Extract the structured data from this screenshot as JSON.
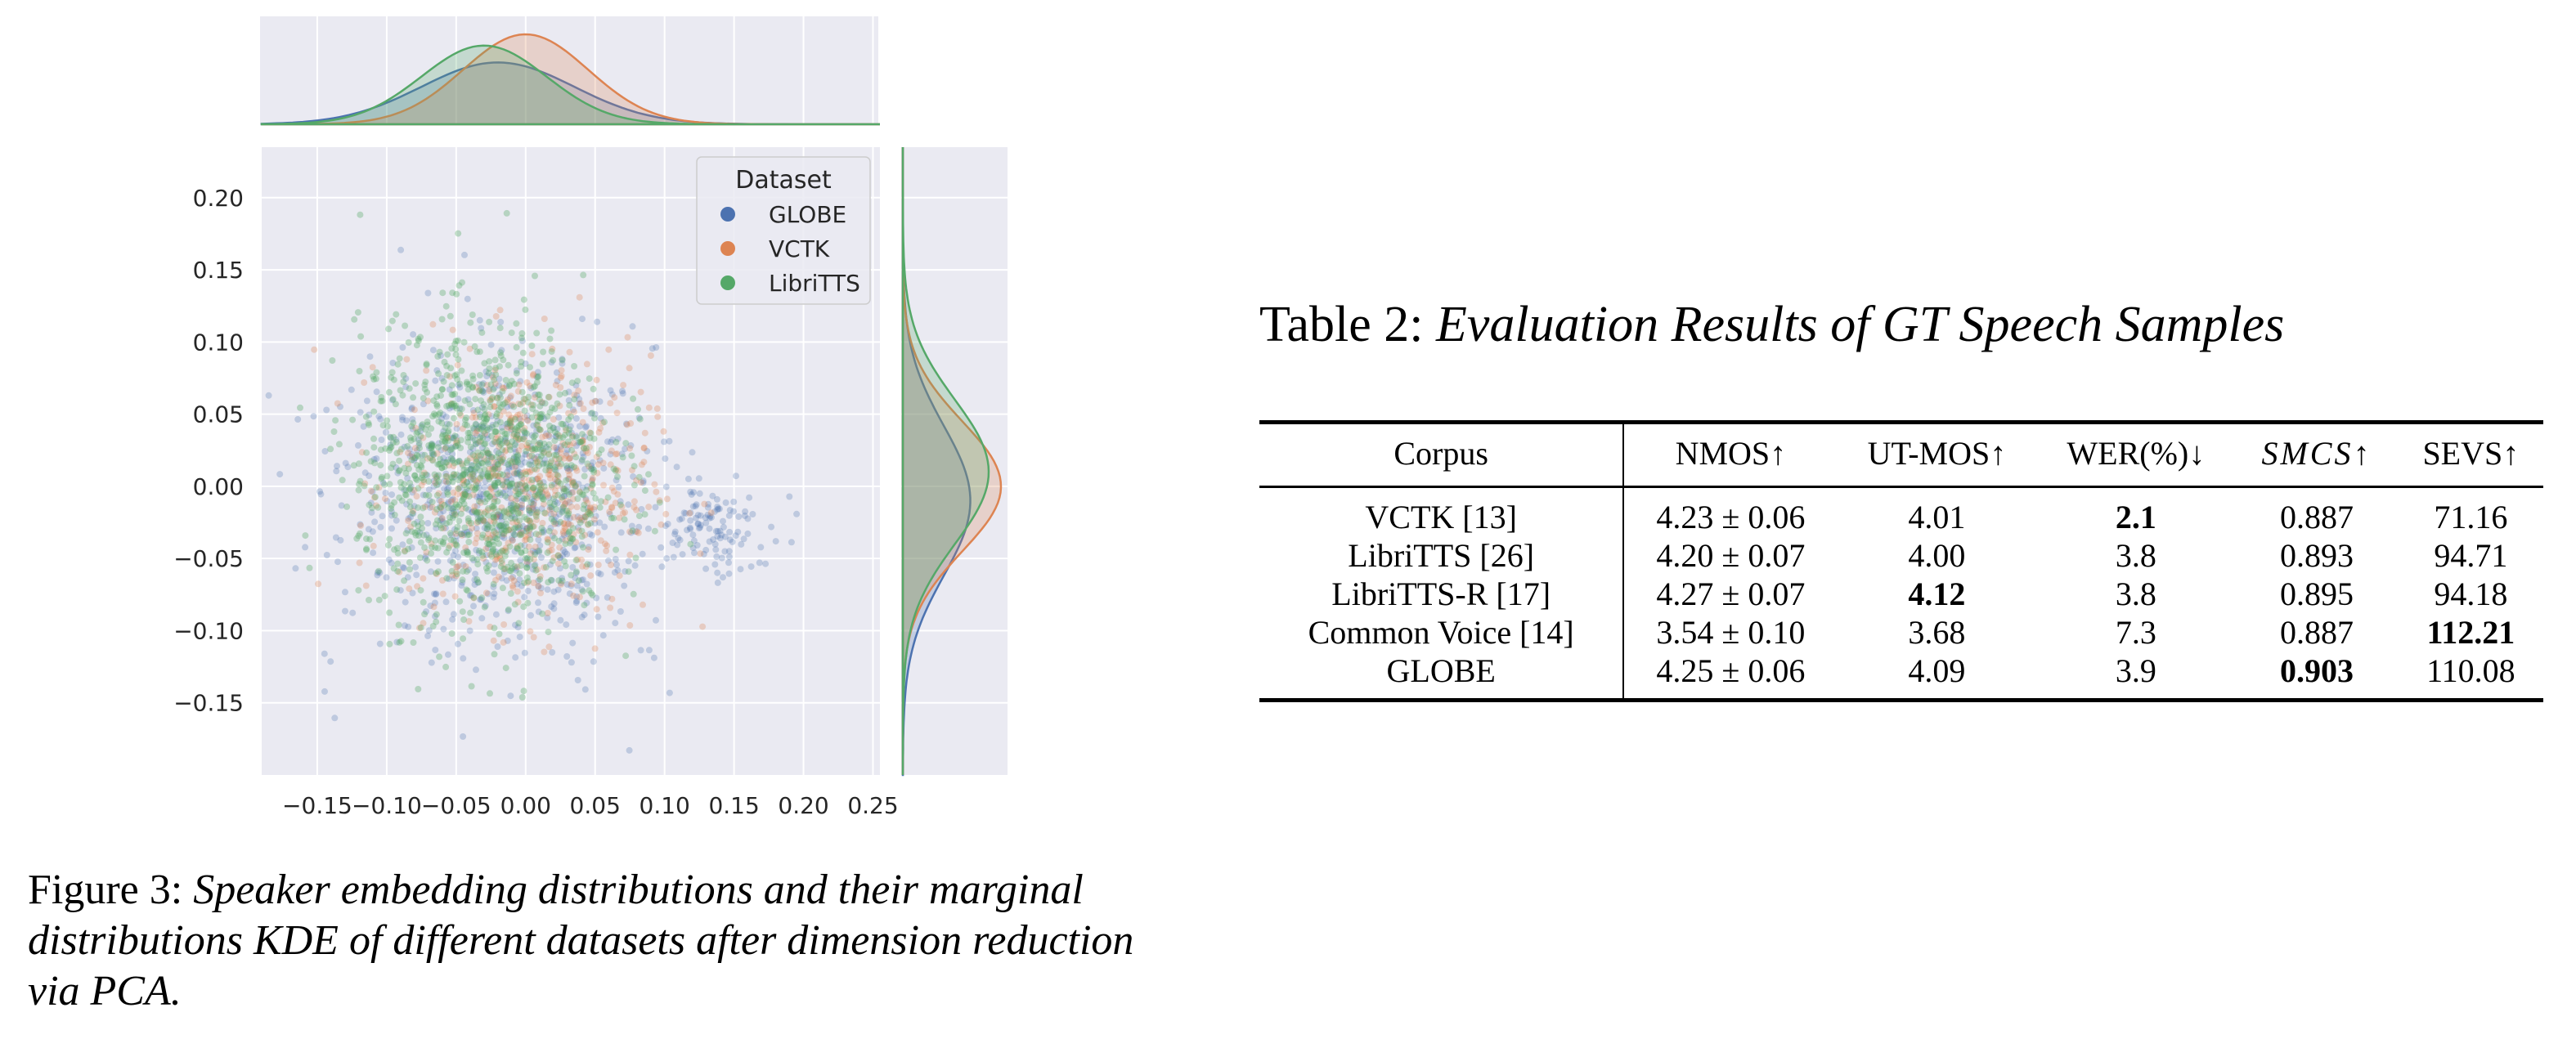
{
  "figure": {
    "caption_label": "Figure 3:",
    "caption_text": "Speaker embedding distributions and their marginal distributions KDE of different datasets after dimension reduction via PCA.",
    "chart_data": {
      "type": "scatter",
      "title": "",
      "xlabel": "",
      "ylabel": "",
      "xlim": [
        -0.19,
        0.255
      ],
      "ylim": [
        -0.2,
        0.235
      ],
      "x_ticks": [
        "−0.15",
        "−0.10",
        "−0.05",
        "0.00",
        "0.05",
        "0.10",
        "0.15",
        "0.20",
        "0.25"
      ],
      "x_tick_values": [
        -0.15,
        -0.1,
        -0.05,
        0.0,
        0.05,
        0.1,
        0.15,
        0.2,
        0.25
      ],
      "y_ticks": [
        "0.20",
        "0.15",
        "0.10",
        "0.05",
        "0.00",
        "−0.05",
        "−0.10",
        "−0.15"
      ],
      "y_tick_values": [
        0.2,
        0.15,
        0.1,
        0.05,
        0.0,
        -0.05,
        -0.1,
        -0.15
      ],
      "grid": true,
      "legend_title": "Dataset",
      "legend_placement": "top-right",
      "marginals": "kde on top (x) and right (y)",
      "series": [
        {
          "name": "GLOBE",
          "color": "#4c72b0",
          "center": [
            -0.02,
            -0.01
          ],
          "spread": [
            0.055,
            0.052
          ]
        },
        {
          "name": "VCTK",
          "color": "#dd8452",
          "center": [
            0.0,
            0.0
          ],
          "spread": [
            0.045,
            0.045
          ]
        },
        {
          "name": "LibriTTS",
          "color": "#55a868",
          "center": [
            -0.03,
            0.01
          ],
          "spread": [
            0.045,
            0.05
          ]
        }
      ]
    }
  },
  "table": {
    "title_prefix": "Table 2:",
    "title_italic": "Evaluation Results of GT Speech Samples",
    "headers": [
      "Corpus",
      "NMOS↑",
      "UT-MOS↑",
      "WER(%)↓",
      "SMCS↑",
      "SEVS↑"
    ],
    "rows": [
      [
        "VCTK [13]",
        "4.23 ± 0.06",
        "4.01",
        "2.1",
        "0.887",
        "71.16"
      ],
      [
        "LibriTTS [26]",
        "4.20 ± 0.07",
        "4.00",
        "3.8",
        "0.893",
        "94.71"
      ],
      [
        "LibriTTS-R [17]",
        "4.27 ± 0.07",
        "4.12",
        "3.8",
        "0.895",
        "94.18"
      ],
      [
        "Common Voice [14]",
        "3.54 ± 0.10",
        "3.68",
        "7.3",
        "0.887",
        "112.21"
      ],
      [
        "GLOBE",
        "4.25 ± 0.06",
        "4.09",
        "3.9",
        "0.903",
        "110.08"
      ]
    ]
  }
}
